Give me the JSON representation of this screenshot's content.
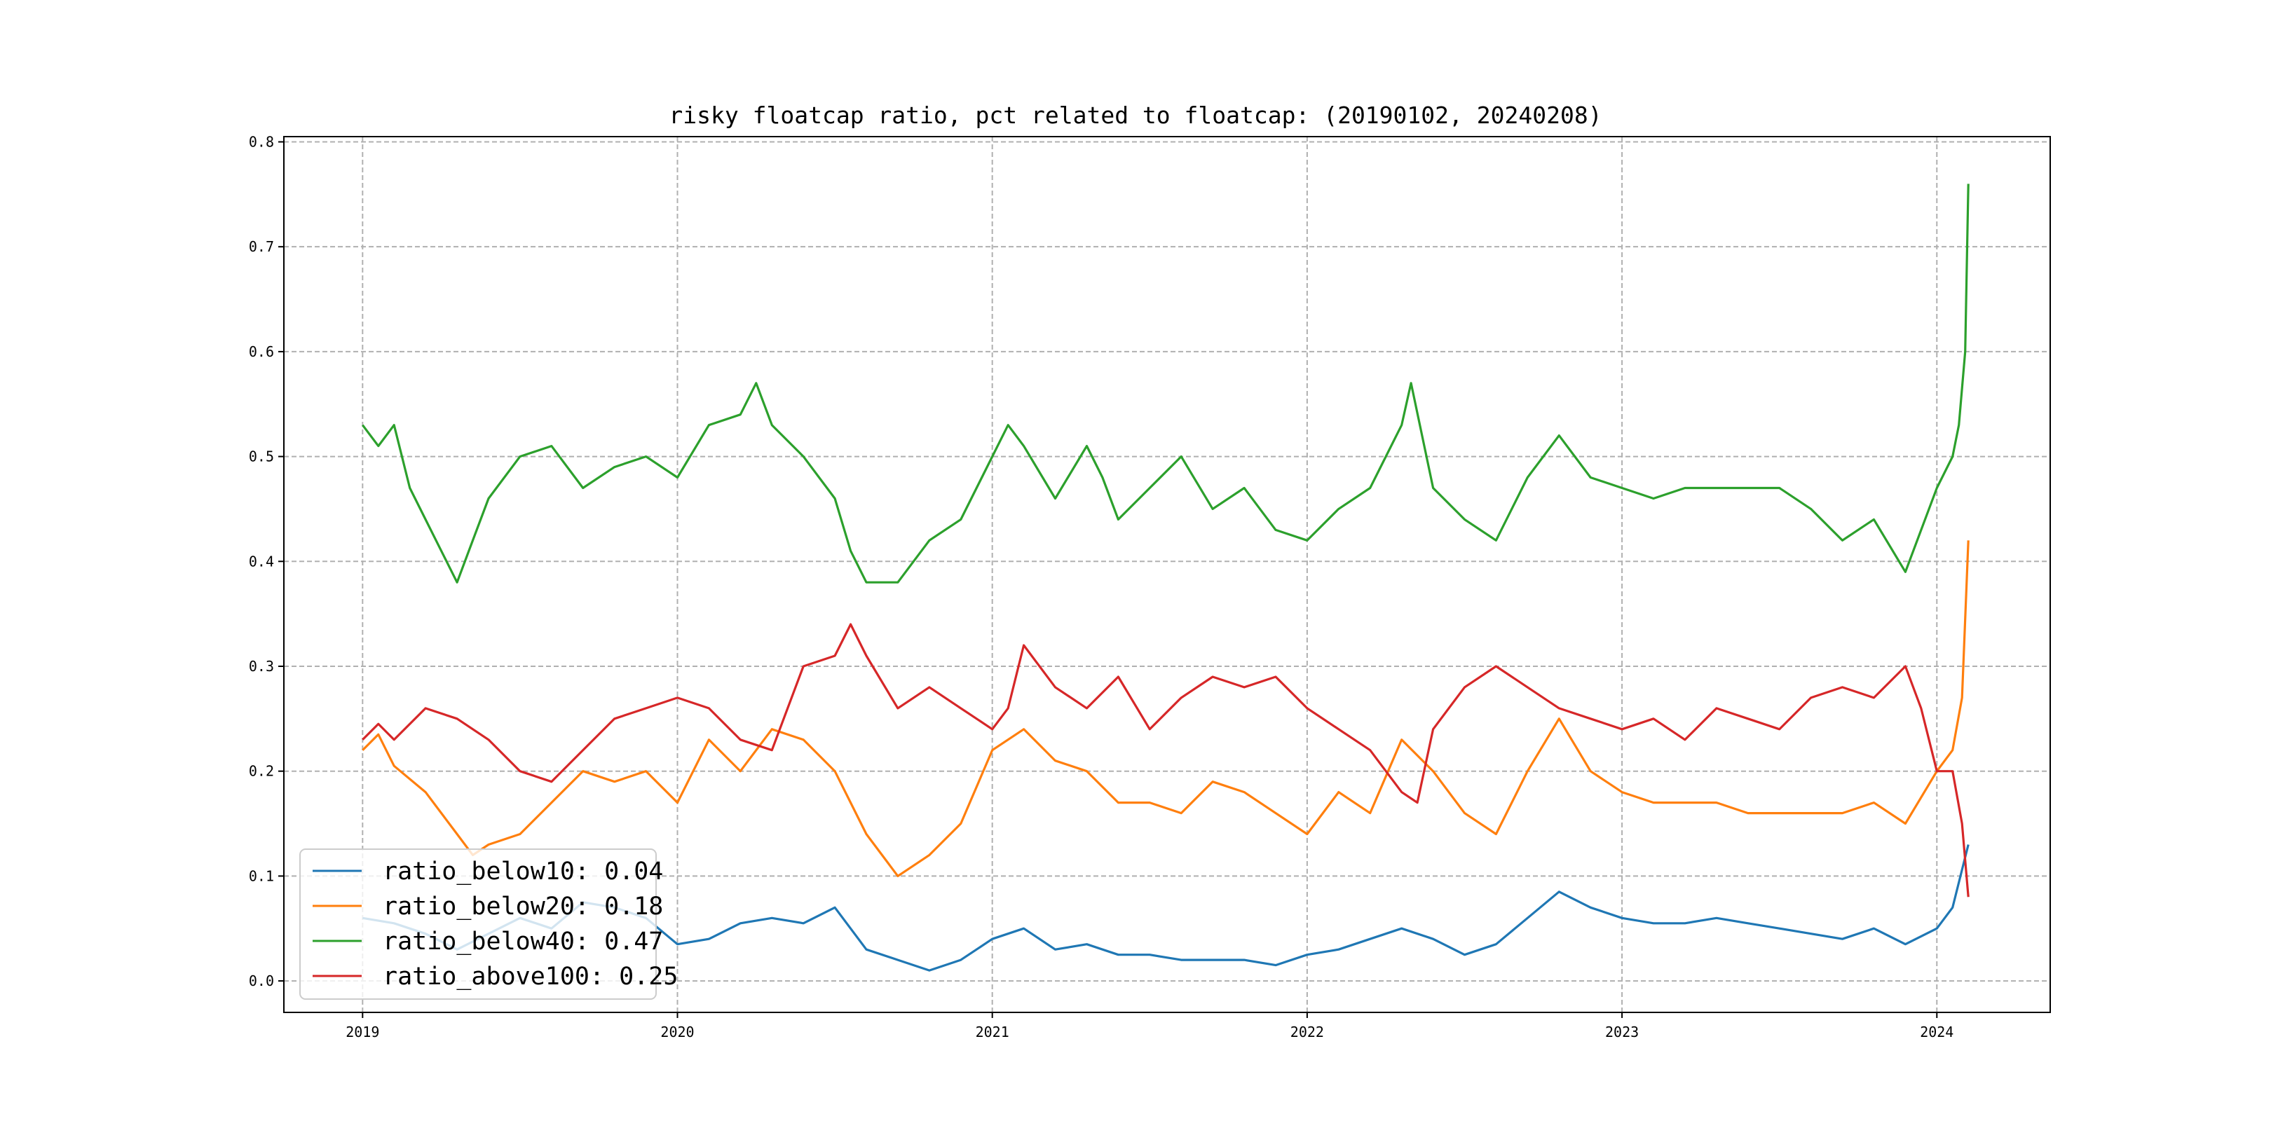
{
  "chart_data": {
    "type": "line",
    "title": "risky floatcap ratio, pct related to floatcap: (20190102, 20240208)",
    "xlabel": "",
    "ylabel": "",
    "xlim": [
      2018.75,
      2024.36
    ],
    "ylim": [
      -0.03,
      0.805
    ],
    "grid": true,
    "legend_position": "lower-left",
    "x_ticks": [
      2019,
      2020,
      2021,
      2022,
      2023,
      2024
    ],
    "x_tick_labels": [
      "2019",
      "2020",
      "2021",
      "2022",
      "2023",
      "2024"
    ],
    "y_ticks": [
      0.0,
      0.1,
      0.2,
      0.3,
      0.4,
      0.5,
      0.6,
      0.7,
      0.8
    ],
    "y_tick_labels": [
      "0.0",
      "0.1",
      "0.2",
      "0.3",
      "0.4",
      "0.5",
      "0.6",
      "0.7",
      "0.8"
    ],
    "series": [
      {
        "name": "ratio_below10",
        "legend_label": "ratio_below10: 0.04",
        "color": "#1f77b4",
        "points": [
          [
            2019.0,
            0.06
          ],
          [
            2019.1,
            0.055
          ],
          [
            2019.2,
            0.045
          ],
          [
            2019.3,
            0.03
          ],
          [
            2019.4,
            0.045
          ],
          [
            2019.5,
            0.06
          ],
          [
            2019.6,
            0.05
          ],
          [
            2019.7,
            0.075
          ],
          [
            2019.8,
            0.07
          ],
          [
            2019.9,
            0.06
          ],
          [
            2020.0,
            0.035
          ],
          [
            2020.1,
            0.04
          ],
          [
            2020.2,
            0.055
          ],
          [
            2020.3,
            0.06
          ],
          [
            2020.4,
            0.055
          ],
          [
            2020.5,
            0.07
          ],
          [
            2020.6,
            0.03
          ],
          [
            2020.7,
            0.02
          ],
          [
            2020.8,
            0.01
          ],
          [
            2020.9,
            0.02
          ],
          [
            2021.0,
            0.04
          ],
          [
            2021.1,
            0.05
          ],
          [
            2021.2,
            0.03
          ],
          [
            2021.3,
            0.035
          ],
          [
            2021.4,
            0.025
          ],
          [
            2021.5,
            0.025
          ],
          [
            2021.6,
            0.02
          ],
          [
            2021.7,
            0.02
          ],
          [
            2021.8,
            0.02
          ],
          [
            2021.9,
            0.015
          ],
          [
            2022.0,
            0.025
          ],
          [
            2022.1,
            0.03
          ],
          [
            2022.2,
            0.04
          ],
          [
            2022.3,
            0.05
          ],
          [
            2022.4,
            0.04
          ],
          [
            2022.5,
            0.025
          ],
          [
            2022.6,
            0.035
          ],
          [
            2022.7,
            0.06
          ],
          [
            2022.8,
            0.085
          ],
          [
            2022.9,
            0.07
          ],
          [
            2023.0,
            0.06
          ],
          [
            2023.1,
            0.055
          ],
          [
            2023.2,
            0.055
          ],
          [
            2023.3,
            0.06
          ],
          [
            2023.4,
            0.055
          ],
          [
            2023.5,
            0.05
          ],
          [
            2023.6,
            0.045
          ],
          [
            2023.7,
            0.04
          ],
          [
            2023.8,
            0.05
          ],
          [
            2023.9,
            0.035
          ],
          [
            2024.0,
            0.05
          ],
          [
            2024.05,
            0.07
          ],
          [
            2024.1,
            0.13
          ]
        ]
      },
      {
        "name": "ratio_below20",
        "legend_label": "ratio_below20: 0.18",
        "color": "#ff7f0e",
        "points": [
          [
            2019.0,
            0.22
          ],
          [
            2019.05,
            0.235
          ],
          [
            2019.1,
            0.205
          ],
          [
            2019.2,
            0.18
          ],
          [
            2019.3,
            0.14
          ],
          [
            2019.35,
            0.12
          ],
          [
            2019.4,
            0.13
          ],
          [
            2019.5,
            0.14
          ],
          [
            2019.6,
            0.17
          ],
          [
            2019.7,
            0.2
          ],
          [
            2019.8,
            0.19
          ],
          [
            2019.9,
            0.2
          ],
          [
            2020.0,
            0.17
          ],
          [
            2020.1,
            0.23
          ],
          [
            2020.2,
            0.2
          ],
          [
            2020.3,
            0.24
          ],
          [
            2020.4,
            0.23
          ],
          [
            2020.5,
            0.2
          ],
          [
            2020.6,
            0.14
          ],
          [
            2020.7,
            0.1
          ],
          [
            2020.8,
            0.12
          ],
          [
            2020.9,
            0.15
          ],
          [
            2021.0,
            0.22
          ],
          [
            2021.1,
            0.24
          ],
          [
            2021.2,
            0.21
          ],
          [
            2021.3,
            0.2
          ],
          [
            2021.4,
            0.17
          ],
          [
            2021.5,
            0.17
          ],
          [
            2021.6,
            0.16
          ],
          [
            2021.7,
            0.19
          ],
          [
            2021.8,
            0.18
          ],
          [
            2021.9,
            0.16
          ],
          [
            2022.0,
            0.14
          ],
          [
            2022.1,
            0.18
          ],
          [
            2022.2,
            0.16
          ],
          [
            2022.3,
            0.23
          ],
          [
            2022.4,
            0.2
          ],
          [
            2022.5,
            0.16
          ],
          [
            2022.6,
            0.14
          ],
          [
            2022.7,
            0.2
          ],
          [
            2022.8,
            0.25
          ],
          [
            2022.9,
            0.2
          ],
          [
            2023.0,
            0.18
          ],
          [
            2023.1,
            0.17
          ],
          [
            2023.2,
            0.17
          ],
          [
            2023.3,
            0.17
          ],
          [
            2023.4,
            0.16
          ],
          [
            2023.5,
            0.16
          ],
          [
            2023.6,
            0.16
          ],
          [
            2023.7,
            0.16
          ],
          [
            2023.8,
            0.17
          ],
          [
            2023.9,
            0.15
          ],
          [
            2024.0,
            0.2
          ],
          [
            2024.05,
            0.22
          ],
          [
            2024.08,
            0.27
          ],
          [
            2024.1,
            0.42
          ]
        ]
      },
      {
        "name": "ratio_below40",
        "legend_label": "ratio_below40: 0.47",
        "color": "#2ca02c",
        "points": [
          [
            2019.0,
            0.53
          ],
          [
            2019.05,
            0.51
          ],
          [
            2019.1,
            0.53
          ],
          [
            2019.15,
            0.47
          ],
          [
            2019.2,
            0.44
          ],
          [
            2019.25,
            0.41
          ],
          [
            2019.3,
            0.38
          ],
          [
            2019.35,
            0.42
          ],
          [
            2019.4,
            0.46
          ],
          [
            2019.5,
            0.5
          ],
          [
            2019.6,
            0.51
          ],
          [
            2019.7,
            0.47
          ],
          [
            2019.8,
            0.49
          ],
          [
            2019.9,
            0.5
          ],
          [
            2020.0,
            0.48
          ],
          [
            2020.1,
            0.53
          ],
          [
            2020.2,
            0.54
          ],
          [
            2020.25,
            0.57
          ],
          [
            2020.3,
            0.53
          ],
          [
            2020.4,
            0.5
          ],
          [
            2020.5,
            0.46
          ],
          [
            2020.55,
            0.41
          ],
          [
            2020.6,
            0.38
          ],
          [
            2020.7,
            0.38
          ],
          [
            2020.8,
            0.42
          ],
          [
            2020.9,
            0.44
          ],
          [
            2021.0,
            0.5
          ],
          [
            2021.05,
            0.53
          ],
          [
            2021.1,
            0.51
          ],
          [
            2021.2,
            0.46
          ],
          [
            2021.3,
            0.51
          ],
          [
            2021.35,
            0.48
          ],
          [
            2021.4,
            0.44
          ],
          [
            2021.5,
            0.47
          ],
          [
            2021.6,
            0.5
          ],
          [
            2021.7,
            0.45
          ],
          [
            2021.8,
            0.47
          ],
          [
            2021.9,
            0.43
          ],
          [
            2022.0,
            0.42
          ],
          [
            2022.1,
            0.45
          ],
          [
            2022.2,
            0.47
          ],
          [
            2022.3,
            0.53
          ],
          [
            2022.33,
            0.57
          ],
          [
            2022.4,
            0.47
          ],
          [
            2022.5,
            0.44
          ],
          [
            2022.6,
            0.42
          ],
          [
            2022.7,
            0.48
          ],
          [
            2022.8,
            0.52
          ],
          [
            2022.9,
            0.48
          ],
          [
            2023.0,
            0.47
          ],
          [
            2023.1,
            0.46
          ],
          [
            2023.2,
            0.47
          ],
          [
            2023.3,
            0.47
          ],
          [
            2023.4,
            0.47
          ],
          [
            2023.5,
            0.47
          ],
          [
            2023.6,
            0.45
          ],
          [
            2023.7,
            0.42
          ],
          [
            2023.8,
            0.44
          ],
          [
            2023.9,
            0.39
          ],
          [
            2024.0,
            0.47
          ],
          [
            2024.05,
            0.5
          ],
          [
            2024.07,
            0.53
          ],
          [
            2024.09,
            0.6
          ],
          [
            2024.1,
            0.76
          ]
        ]
      },
      {
        "name": "ratio_above100",
        "legend_label": "ratio_above100: 0.25",
        "color": "#d62728",
        "points": [
          [
            2019.0,
            0.23
          ],
          [
            2019.05,
            0.245
          ],
          [
            2019.1,
            0.23
          ],
          [
            2019.2,
            0.26
          ],
          [
            2019.3,
            0.25
          ],
          [
            2019.4,
            0.23
          ],
          [
            2019.5,
            0.2
          ],
          [
            2019.6,
            0.19
          ],
          [
            2019.7,
            0.22
          ],
          [
            2019.8,
            0.25
          ],
          [
            2019.9,
            0.26
          ],
          [
            2020.0,
            0.27
          ],
          [
            2020.1,
            0.26
          ],
          [
            2020.2,
            0.23
          ],
          [
            2020.3,
            0.22
          ],
          [
            2020.35,
            0.26
          ],
          [
            2020.4,
            0.3
          ],
          [
            2020.5,
            0.31
          ],
          [
            2020.55,
            0.34
          ],
          [
            2020.6,
            0.31
          ],
          [
            2020.7,
            0.26
          ],
          [
            2020.8,
            0.28
          ],
          [
            2020.9,
            0.26
          ],
          [
            2021.0,
            0.24
          ],
          [
            2021.05,
            0.26
          ],
          [
            2021.1,
            0.32
          ],
          [
            2021.2,
            0.28
          ],
          [
            2021.3,
            0.26
          ],
          [
            2021.4,
            0.29
          ],
          [
            2021.5,
            0.24
          ],
          [
            2021.6,
            0.27
          ],
          [
            2021.7,
            0.29
          ],
          [
            2021.8,
            0.28
          ],
          [
            2021.9,
            0.29
          ],
          [
            2022.0,
            0.26
          ],
          [
            2022.1,
            0.24
          ],
          [
            2022.2,
            0.22
          ],
          [
            2022.3,
            0.18
          ],
          [
            2022.35,
            0.17
          ],
          [
            2022.4,
            0.24
          ],
          [
            2022.5,
            0.28
          ],
          [
            2022.6,
            0.3
          ],
          [
            2022.7,
            0.28
          ],
          [
            2022.8,
            0.26
          ],
          [
            2022.9,
            0.25
          ],
          [
            2023.0,
            0.24
          ],
          [
            2023.1,
            0.25
          ],
          [
            2023.2,
            0.23
          ],
          [
            2023.3,
            0.26
          ],
          [
            2023.4,
            0.25
          ],
          [
            2023.5,
            0.24
          ],
          [
            2023.6,
            0.27
          ],
          [
            2023.7,
            0.28
          ],
          [
            2023.8,
            0.27
          ],
          [
            2023.9,
            0.3
          ],
          [
            2023.95,
            0.26
          ],
          [
            2024.0,
            0.2
          ],
          [
            2024.05,
            0.2
          ],
          [
            2024.08,
            0.15
          ],
          [
            2024.1,
            0.08
          ]
        ]
      }
    ]
  }
}
